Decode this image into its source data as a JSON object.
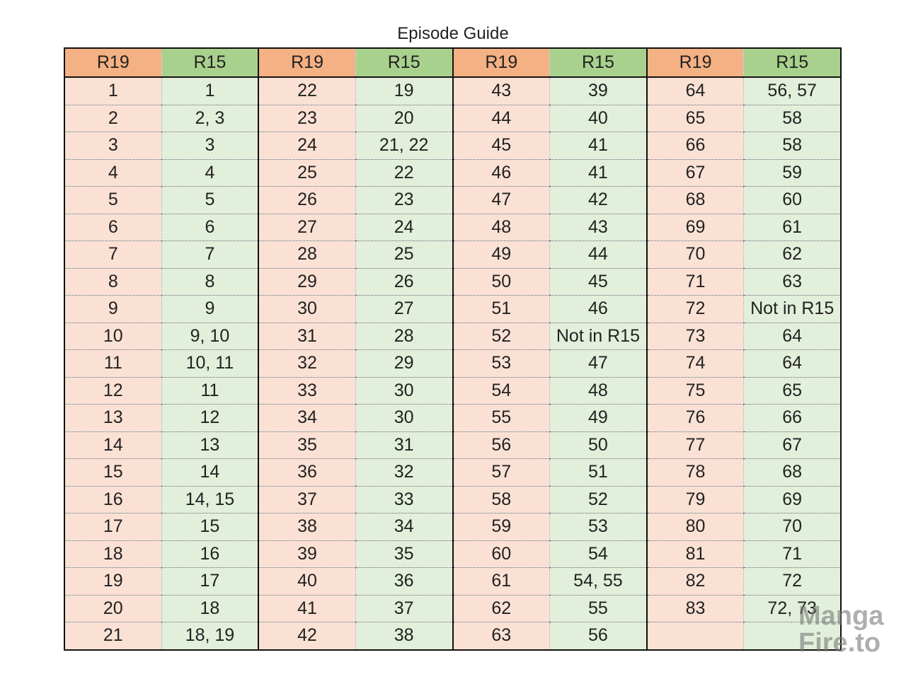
{
  "title": "Episode Guide",
  "groups": [
    {
      "headers": [
        "R19",
        "R15"
      ],
      "rows": [
        [
          1,
          1
        ],
        [
          2,
          "2, 3"
        ],
        [
          3,
          3
        ],
        [
          4,
          4
        ],
        [
          5,
          5
        ],
        [
          6,
          6
        ],
        [
          7,
          7
        ],
        [
          8,
          8
        ],
        [
          9,
          9
        ],
        [
          10,
          "9, 10"
        ],
        [
          11,
          "10, 11"
        ],
        [
          12,
          11
        ],
        [
          13,
          12
        ],
        [
          14,
          13
        ],
        [
          15,
          14
        ],
        [
          16,
          "14, 15"
        ],
        [
          17,
          15
        ],
        [
          18,
          16
        ],
        [
          19,
          17
        ],
        [
          20,
          18
        ],
        [
          21,
          "18, 19"
        ]
      ]
    },
    {
      "headers": [
        "R19",
        "R15"
      ],
      "rows": [
        [
          22,
          19
        ],
        [
          23,
          20
        ],
        [
          24,
          "21, 22"
        ],
        [
          25,
          22
        ],
        [
          26,
          23
        ],
        [
          27,
          24
        ],
        [
          28,
          25
        ],
        [
          29,
          26
        ],
        [
          30,
          27
        ],
        [
          31,
          28
        ],
        [
          32,
          29
        ],
        [
          33,
          30
        ],
        [
          34,
          30
        ],
        [
          35,
          31
        ],
        [
          36,
          32
        ],
        [
          37,
          33
        ],
        [
          38,
          34
        ],
        [
          39,
          35
        ],
        [
          40,
          36
        ],
        [
          41,
          37
        ],
        [
          42,
          38
        ]
      ]
    },
    {
      "headers": [
        "R19",
        "R15"
      ],
      "rows": [
        [
          43,
          39
        ],
        [
          44,
          40
        ],
        [
          45,
          41
        ],
        [
          46,
          41
        ],
        [
          47,
          42
        ],
        [
          48,
          43
        ],
        [
          49,
          44
        ],
        [
          50,
          45
        ],
        [
          51,
          46
        ],
        [
          52,
          "Not in R15"
        ],
        [
          53,
          47
        ],
        [
          54,
          48
        ],
        [
          55,
          49
        ],
        [
          56,
          50
        ],
        [
          57,
          51
        ],
        [
          58,
          52
        ],
        [
          59,
          53
        ],
        [
          60,
          54
        ],
        [
          61,
          "54, 55"
        ],
        [
          62,
          55
        ],
        [
          63,
          56
        ]
      ]
    },
    {
      "headers": [
        "R19",
        "R15"
      ],
      "rows": [
        [
          64,
          "56, 57"
        ],
        [
          65,
          58
        ],
        [
          66,
          58
        ],
        [
          67,
          59
        ],
        [
          68,
          60
        ],
        [
          69,
          61
        ],
        [
          70,
          62
        ],
        [
          71,
          63
        ],
        [
          72,
          "Not in R15"
        ],
        [
          73,
          64
        ],
        [
          74,
          64
        ],
        [
          75,
          65
        ],
        [
          76,
          66
        ],
        [
          77,
          67
        ],
        [
          78,
          68
        ],
        [
          79,
          69
        ],
        [
          80,
          70
        ],
        [
          81,
          71
        ],
        [
          82,
          72
        ],
        [
          83,
          "72, 73"
        ]
      ]
    }
  ],
  "watermark": [
    "Manga",
    "Fire.to"
  ]
}
